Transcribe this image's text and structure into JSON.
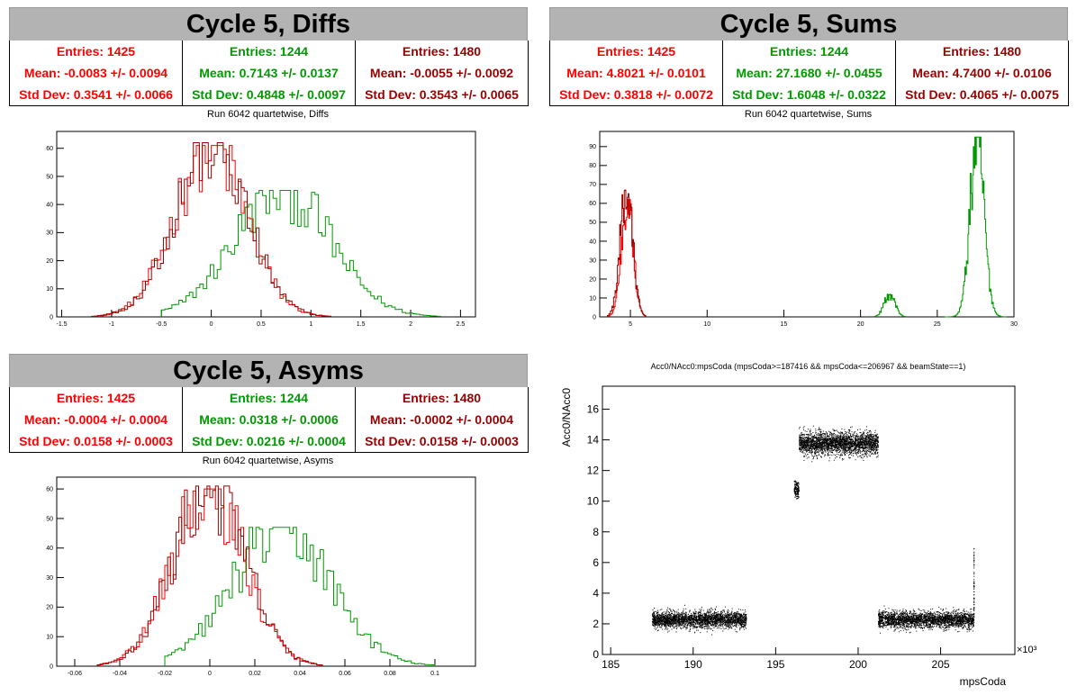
{
  "panels": {
    "diffs": {
      "title": "Cycle 5, Diffs",
      "subtitle": "Run 6042 quartetwise, Diffs",
      "stats": [
        {
          "color": "#ff0000",
          "entries": "Entries: 1425",
          "mean": "Mean: -0.0083 +/- 0.0094",
          "std": "Std Dev: 0.3541 +/- 0.0066"
        },
        {
          "color": "#009900",
          "entries": "Entries: 1244",
          "mean": "Mean: 0.7143 +/- 0.0137",
          "std": "Std Dev: 0.4848 +/- 0.0097"
        },
        {
          "color": "#990000",
          "entries": "Entries: 1480",
          "mean": "Mean: -0.0055 +/- 0.0092",
          "std": "Std Dev: 0.3543 +/- 0.0065"
        }
      ]
    },
    "sums": {
      "title": "Cycle 5, Sums",
      "subtitle": "Run 6042 quartetwise, Sums",
      "stats": [
        {
          "color": "#ff0000",
          "entries": "Entries: 1425",
          "mean": "Mean: 4.8021 +/- 0.0101",
          "std": "Std Dev: 0.3818 +/- 0.0072"
        },
        {
          "color": "#009900",
          "entries": "Entries: 1244",
          "mean": "Mean: 27.1680 +/- 0.0455",
          "std": "Std Dev: 1.6048 +/- 0.0322"
        },
        {
          "color": "#990000",
          "entries": "Entries: 1480",
          "mean": "Mean: 4.7400 +/- 0.0106",
          "std": "Std Dev: 0.4065 +/- 0.0075"
        }
      ]
    },
    "asyms": {
      "title": "Cycle 5, Asyms",
      "subtitle": "Run 6042 quartetwise, Asyms",
      "stats": [
        {
          "color": "#ff0000",
          "entries": "Entries: 1425",
          "mean": "Mean: -0.0004 +/- 0.0004",
          "std": "Std Dev: 0.0158 +/- 0.0003"
        },
        {
          "color": "#009900",
          "entries": "Entries: 1244",
          "mean": "Mean: 0.0318 +/- 0.0006",
          "std": "Std Dev: 0.0216 +/- 0.0004"
        },
        {
          "color": "#990000",
          "entries": "Entries: 1480",
          "mean": "Mean: -0.0002 +/- 0.0004",
          "std": "Std Dev: 0.0158 +/- 0.0003"
        }
      ]
    },
    "scatter": {
      "title": "Acc0/NAcc0:mpsCoda (mpsCoda>=187416 && mpsCoda<=206967 && beamState==1)"
    }
  },
  "chart_data": [
    {
      "name": "diffs",
      "type": "area",
      "xlim": [
        -1.55,
        2.65
      ],
      "ylim": [
        0,
        66
      ],
      "xticks": [
        "-1.5",
        "-1",
        "-0.5",
        "0",
        "0.5",
        "1",
        "1.5",
        "2",
        "2.5"
      ],
      "xtick_values": [
        -1.5,
        -1,
        -0.5,
        0,
        0.5,
        1,
        1.5,
        2,
        2.5
      ],
      "yticks": [
        "0",
        "10",
        "20",
        "30",
        "40",
        "50",
        "60"
      ],
      "ytick_values": [
        0,
        10,
        20,
        30,
        40,
        50,
        60
      ],
      "series": [
        {
          "color": "#ff0000",
          "mean": -0.0083,
          "std": 0.3541,
          "peak": 61,
          "xmin": -1.2,
          "xmax": 1.2,
          "bins": 80
        },
        {
          "color": "#009900",
          "mean": 0.7143,
          "std": 0.4848,
          "peak": 45,
          "xmin": -0.5,
          "xmax": 2.3,
          "bins": 80
        },
        {
          "color": "#990000",
          "mean": -0.0055,
          "std": 0.3543,
          "peak": 62,
          "xmin": -1.2,
          "xmax": 1.2,
          "bins": 80
        }
      ]
    },
    {
      "name": "sums",
      "type": "area",
      "xlim": [
        3.0,
        30.0
      ],
      "ylim": [
        0,
        98
      ],
      "xticks": [
        "5",
        "10",
        "15",
        "20",
        "25",
        "30"
      ],
      "xtick_values": [
        5,
        10,
        15,
        20,
        25,
        30
      ],
      "yticks": [
        "0",
        "10",
        "20",
        "30",
        "40",
        "50",
        "60",
        "70",
        "80",
        "90"
      ],
      "ytick_values": [
        0,
        10,
        20,
        30,
        40,
        50,
        60,
        70,
        80,
        90
      ],
      "series": [
        {
          "color": "#ff0000",
          "mean": 4.8,
          "std": 0.38,
          "peak": 62,
          "xmin": 3.5,
          "xmax": 6.0,
          "bins": 50
        },
        {
          "color": "#009900",
          "mean": 27.6,
          "std": 0.45,
          "peak": 95,
          "xmin": 25.5,
          "xmax": 29.5,
          "bins": 80
        },
        {
          "color": "#009900",
          "mean": 21.9,
          "std": 0.35,
          "peak": 12,
          "xmin": 20.8,
          "xmax": 23.0,
          "bins": 40
        },
        {
          "color": "#990000",
          "mean": 4.74,
          "std": 0.4,
          "peak": 67,
          "xmin": 3.5,
          "xmax": 6.0,
          "bins": 50
        }
      ]
    },
    {
      "name": "asyms",
      "type": "area",
      "xlim": [
        -0.068,
        0.118
      ],
      "ylim": [
        0,
        64
      ],
      "xticks": [
        "-0.06",
        "-0.04",
        "-0.02",
        "0",
        "0.02",
        "0.04",
        "0.06",
        "0.08",
        "0.1"
      ],
      "xtick_values": [
        -0.06,
        -0.04,
        -0.02,
        0,
        0.02,
        0.04,
        0.06,
        0.08,
        0.1
      ],
      "yticks": [
        "0",
        "10",
        "20",
        "30",
        "40",
        "50",
        "60"
      ],
      "ytick_values": [
        0,
        10,
        20,
        30,
        40,
        50,
        60
      ],
      "series": [
        {
          "color": "#ff0000",
          "mean": -0.0004,
          "std": 0.0158,
          "peak": 60,
          "xmin": -0.05,
          "xmax": 0.05,
          "bins": 80
        },
        {
          "color": "#009900",
          "mean": 0.0318,
          "std": 0.0216,
          "peak": 47,
          "xmin": -0.02,
          "xmax": 0.1,
          "bins": 80
        },
        {
          "color": "#990000",
          "mean": -0.0002,
          "std": 0.0158,
          "peak": 61,
          "xmin": -0.05,
          "xmax": 0.05,
          "bins": 80
        }
      ]
    },
    {
      "name": "scatter",
      "type": "scatter",
      "xlabel": "mpsCoda",
      "ylabel": "Acc0/NAcc0",
      "xlim": [
        184.5,
        209.5
      ],
      "ylim": [
        0,
        17.5
      ],
      "x_multiplier": "×10³",
      "xticks": [
        "185",
        "190",
        "195",
        "200",
        "205"
      ],
      "xtick_values": [
        185,
        190,
        195,
        200,
        205
      ],
      "yticks": [
        "0",
        "2",
        "4",
        "6",
        "8",
        "10",
        "12",
        "14",
        "16"
      ],
      "ytick_values": [
        0,
        2,
        4,
        6,
        8,
        10,
        12,
        14,
        16
      ],
      "clusters": [
        {
          "xmin": 187.5,
          "xmax": 193.2,
          "ymean": 2.3,
          "yspread": 0.6,
          "n": 2600
        },
        {
          "xmin": 196.1,
          "xmax": 196.4,
          "ymean": 10.8,
          "yspread": 0.6,
          "n": 150
        },
        {
          "xmin": 196.4,
          "xmax": 201.2,
          "ymean": 13.8,
          "yspread": 0.8,
          "n": 2600
        },
        {
          "xmin": 201.2,
          "xmax": 207.0,
          "ymean": 2.3,
          "yspread": 0.6,
          "n": 2600
        }
      ],
      "color": "#000000"
    }
  ]
}
